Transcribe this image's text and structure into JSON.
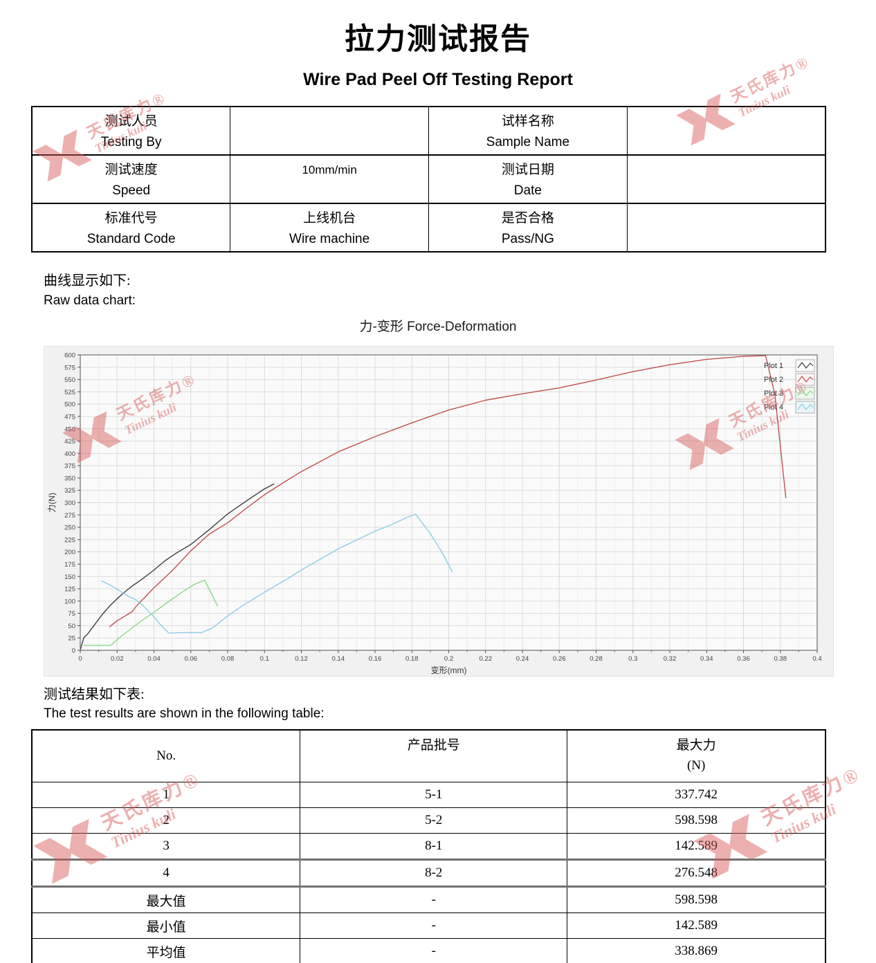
{
  "header": {
    "title_cn": "拉力测试报告",
    "title_en": "Wire Pad Peel Off Testing Report"
  },
  "info_table": {
    "rows": [
      [
        {
          "cn": "测试人员",
          "en": "Testing By"
        },
        {
          "text": ""
        },
        {
          "cn": "试样名称",
          "en": "Sample Name"
        },
        {
          "text": ""
        }
      ],
      [
        {
          "cn": "测试速度",
          "en": "Speed"
        },
        {
          "text": "10mm/min"
        },
        {
          "cn": "测试日期",
          "en": "Date"
        },
        {
          "text": ""
        }
      ],
      [
        {
          "cn": "标准代号",
          "en": "Standard Code"
        },
        {
          "cn": "上线机台",
          "en": "Wire machine"
        },
        {
          "cn": "是否合格",
          "en": "Pass/NG"
        },
        {
          "text": ""
        }
      ]
    ]
  },
  "sections": {
    "curve_cn": "曲线显示如下:",
    "curve_en": "Raw data chart:",
    "results_cn": "测试结果如下表:",
    "results_en": "The test results are shown in the following table:"
  },
  "chart_data": {
    "type": "line",
    "title": "力-变形 Force-Deformation",
    "xlabel": "变形(mm)",
    "ylabel": "力(N)",
    "xlim": [
      0,
      0.4
    ],
    "ylim": [
      0,
      600
    ],
    "x_tick_step": 0.02,
    "x_minor_step": 0.01,
    "y_tick_step": 25,
    "grid": true,
    "legend_position": "top-right",
    "plot_bg": "#fafafa",
    "panel_bg": "#f1f1f1",
    "grid_color": "#d9d9d9",
    "series": [
      {
        "name": "Plot 1",
        "color": "#3d3d3d",
        "legend_bg": "#fcfcfc",
        "max_force": 337.742,
        "points": [
          [
            0,
            0
          ],
          [
            0.001,
            14
          ],
          [
            0.002,
            26
          ],
          [
            0.004,
            33
          ],
          [
            0.007,
            48
          ],
          [
            0.012,
            73
          ],
          [
            0.016,
            90
          ],
          [
            0.02,
            105
          ],
          [
            0.024,
            118
          ],
          [
            0.028,
            130
          ],
          [
            0.033,
            143
          ],
          [
            0.04,
            163
          ],
          [
            0.046,
            182
          ],
          [
            0.052,
            197
          ],
          [
            0.06,
            215
          ],
          [
            0.07,
            245
          ],
          [
            0.08,
            277
          ],
          [
            0.09,
            303
          ],
          [
            0.1,
            328
          ],
          [
            0.105,
            337.7
          ]
        ]
      },
      {
        "name": "Plot 2",
        "color": "#c0504d",
        "legend_bg": "#fdf5f5",
        "max_force": 598.598,
        "points": [
          [
            0.016,
            48
          ],
          [
            0.02,
            60
          ],
          [
            0.028,
            78
          ],
          [
            0.031,
            92
          ],
          [
            0.04,
            127
          ],
          [
            0.05,
            162
          ],
          [
            0.06,
            202
          ],
          [
            0.07,
            236
          ],
          [
            0.08,
            259
          ],
          [
            0.09,
            288
          ],
          [
            0.1,
            316
          ],
          [
            0.11,
            340
          ],
          [
            0.12,
            363
          ],
          [
            0.14,
            403
          ],
          [
            0.16,
            434
          ],
          [
            0.18,
            462
          ],
          [
            0.2,
            488
          ],
          [
            0.22,
            508
          ],
          [
            0.24,
            521
          ],
          [
            0.26,
            533
          ],
          [
            0.28,
            549
          ],
          [
            0.3,
            566
          ],
          [
            0.32,
            580
          ],
          [
            0.34,
            591
          ],
          [
            0.36,
            597
          ],
          [
            0.372,
            598.6
          ],
          [
            0.377,
            520
          ],
          [
            0.383,
            310
          ]
        ]
      },
      {
        "name": "Plot 3",
        "color": "#86d986",
        "legend_bg": "#edf9ed",
        "max_force": 142.589,
        "points": [
          [
            0.002,
            10
          ],
          [
            0.0165,
            10
          ],
          [
            0.022,
            28
          ],
          [
            0.028,
            45
          ],
          [
            0.034,
            62
          ],
          [
            0.04,
            77
          ],
          [
            0.048,
            99
          ],
          [
            0.056,
            120
          ],
          [
            0.062,
            134
          ],
          [
            0.0675,
            142.6
          ],
          [
            0.0745,
            90
          ]
        ]
      },
      {
        "name": "Plot 4",
        "color": "#8ccde5",
        "legend_bg": "#eaf5fb",
        "max_force": 276.548,
        "points": [
          [
            0.0115,
            141
          ],
          [
            0.016,
            133
          ],
          [
            0.02,
            124
          ],
          [
            0.026,
            110
          ],
          [
            0.03,
            103
          ],
          [
            0.034,
            91
          ],
          [
            0.04,
            68
          ],
          [
            0.044,
            50
          ],
          [
            0.048,
            35
          ],
          [
            0.056,
            36
          ],
          [
            0.066,
            36
          ],
          [
            0.072,
            46
          ],
          [
            0.08,
            70
          ],
          [
            0.087,
            88
          ],
          [
            0.1,
            118
          ],
          [
            0.11,
            140
          ],
          [
            0.12,
            163
          ],
          [
            0.14,
            206
          ],
          [
            0.16,
            242
          ],
          [
            0.17,
            257
          ],
          [
            0.178,
            271
          ],
          [
            0.182,
            276.5
          ],
          [
            0.19,
            237
          ],
          [
            0.196,
            201
          ],
          [
            0.202,
            159
          ]
        ]
      }
    ]
  },
  "results_table": {
    "headers": {
      "no": "No.",
      "batch": "产品批号",
      "force1": "最大力",
      "force2": "(N)"
    },
    "rows": [
      {
        "no": "1",
        "batch": "5-1",
        "force": "337.742"
      },
      {
        "no": "2",
        "batch": "5-2",
        "force": "598.598"
      },
      {
        "no": "3",
        "batch": "8-1",
        "force": "142.589"
      },
      {
        "no": "4",
        "batch": "8-2",
        "force": "276.548"
      },
      {
        "no": "最大值",
        "batch": "-",
        "force": "598.598"
      },
      {
        "no": "最小值",
        "batch": "-",
        "force": "142.589"
      },
      {
        "no": "平均值",
        "batch": "-",
        "force": "338.869"
      }
    ]
  },
  "watermark": {
    "cn": "天氏库力®",
    "en": "Tinius kuli",
    "color": "#d85c5c"
  }
}
